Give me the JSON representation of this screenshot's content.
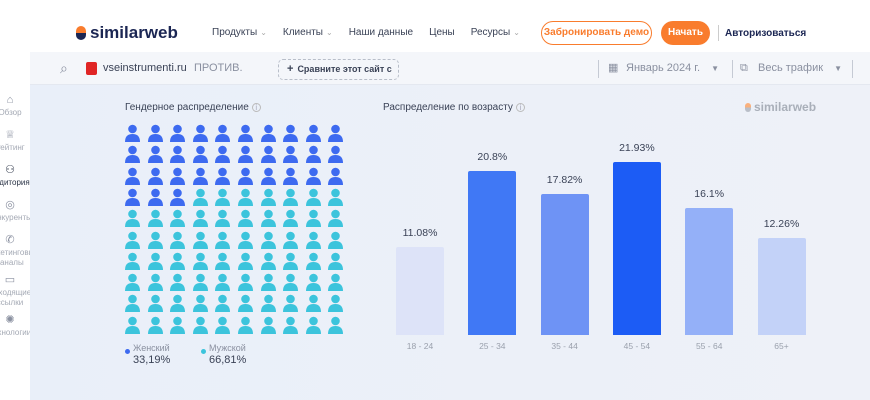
{
  "header": {
    "brand": "similarweb",
    "nav": [
      "Продукты",
      "Клиенты",
      "Наши данные",
      "Цены",
      "Ресурсы"
    ],
    "demo": "Забронировать демо",
    "start": "Начать",
    "login": "Авторизоваться"
  },
  "toolbar": {
    "site": "vseinstrumenti.ru",
    "vs": "ПРОТИВ.",
    "compare": "Сравните этот сайт с",
    "date": "Январь 2024 г.",
    "traffic": "Весь трафик"
  },
  "sidebar": [
    {
      "label": "Обзор",
      "icon": "⌂"
    },
    {
      "label": "Рейтинг",
      "icon": "♕"
    },
    {
      "label": "Аудитория",
      "icon": "⚇"
    },
    {
      "label": "Конкуренты",
      "icon": "◎"
    },
    {
      "label": "Маркетинговые каналы",
      "icon": "✆"
    },
    {
      "label": "Исходящие ссылки",
      "icon": "▭"
    },
    {
      "label": "Технологии",
      "icon": "✺"
    }
  ],
  "gender": {
    "title": "Гендерное распределение",
    "female_label": "Женский",
    "female_value": "33,19%",
    "male_label": "Мужской",
    "male_value": "66,81%",
    "female_share": 33.19,
    "colors": {
      "female": "#3d6af0",
      "male": "#3cc4dc"
    }
  },
  "chart_data": {
    "type": "bar",
    "title": "Распределение по возрасту",
    "categories": [
      "18 - 24",
      "25 - 34",
      "35 - 44",
      "45 - 54",
      "55 - 64",
      "65+"
    ],
    "values": [
      11.08,
      20.8,
      17.82,
      21.93,
      16.1,
      12.26
    ],
    "labels": [
      "11.08%",
      "20.8%",
      "17.82%",
      "21.93%",
      "16.1%",
      "12.26%"
    ],
    "colors": [
      "#dde3f8",
      "#4078f5",
      "#6e93f5",
      "#1c5cf5",
      "#94b0f8",
      "#c3d2f8"
    ],
    "ylim": [
      0,
      22
    ]
  },
  "watermark": "similarweb"
}
